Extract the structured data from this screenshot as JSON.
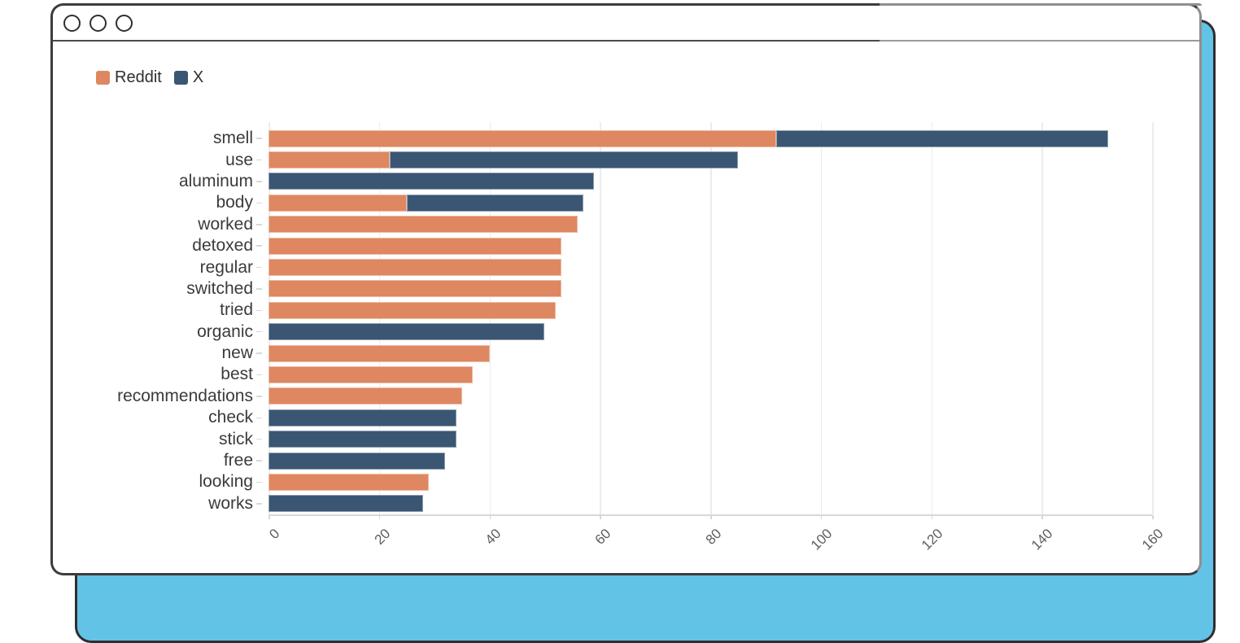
{
  "window": {
    "traffic_lights_count": 3
  },
  "colors": {
    "reddit_orange": "#DE8760",
    "x_blue": "#3A5673",
    "page_behind_blue": "#63C3E7",
    "gridline": "#ececec",
    "axis": "#d8d8d8"
  },
  "chart_data": {
    "type": "bar",
    "orientation": "horizontal",
    "stacked": true,
    "title": "",
    "xlabel": "",
    "ylabel": "",
    "xlim": [
      0,
      160
    ],
    "xticks": [
      0,
      20,
      40,
      60,
      80,
      100,
      120,
      140,
      160
    ],
    "grid": "vertical",
    "legend_position": "top-left",
    "categories": [
      "smell",
      "use",
      "aluminum",
      "body",
      "worked",
      "detoxed",
      "regular",
      "switched",
      "tried",
      "organic",
      "new",
      "best",
      "recommendations",
      "check",
      "stick",
      "free",
      "looking",
      "works"
    ],
    "series": [
      {
        "name": "Reddit",
        "color": "#DE8760",
        "values": [
          92,
          22,
          0,
          25,
          56,
          53,
          53,
          53,
          52,
          0,
          40,
          37,
          35,
          0,
          0,
          0,
          29,
          0
        ]
      },
      {
        "name": "X",
        "color": "#3A5673",
        "values": [
          60,
          63,
          59,
          32,
          0,
          0,
          0,
          0,
          0,
          50,
          0,
          0,
          0,
          34,
          34,
          32,
          0,
          28
        ]
      }
    ]
  }
}
